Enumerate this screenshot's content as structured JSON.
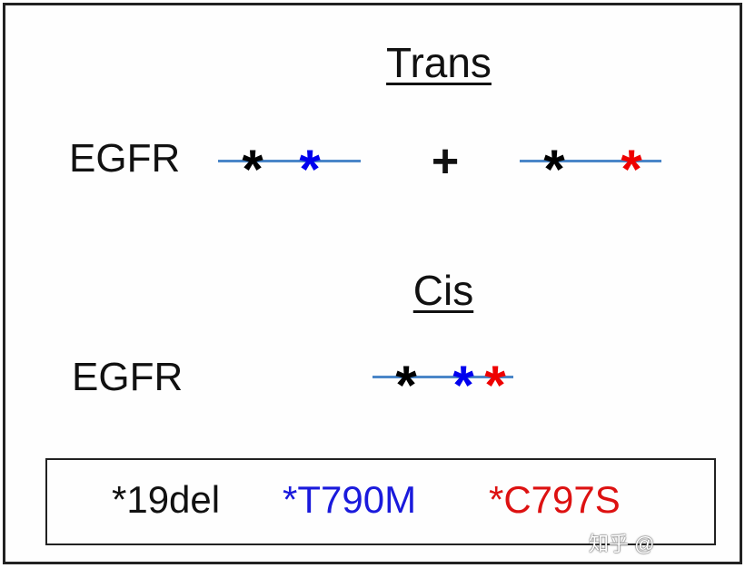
{
  "trans": {
    "title": "Trans",
    "gene_label": "EGFR",
    "plus": "+",
    "allele1": [
      {
        "mark": "*",
        "mutation": "19del",
        "color": "#000000"
      },
      {
        "mark": "*",
        "mutation": "T790M",
        "color": "#0000ee"
      }
    ],
    "allele2": [
      {
        "mark": "*",
        "mutation": "19del",
        "color": "#000000"
      },
      {
        "mark": "*",
        "mutation": "C797S",
        "color": "#ee0000"
      }
    ]
  },
  "cis": {
    "title": "Cis",
    "gene_label": "EGFR",
    "allele": [
      {
        "mark": "*",
        "mutation": "19del",
        "color": "#000000"
      },
      {
        "mark": "*",
        "mutation": "T790M",
        "color": "#0000ee"
      },
      {
        "mark": "*",
        "mutation": "C797S",
        "color": "#ee0000"
      }
    ]
  },
  "legend": {
    "items": [
      {
        "label": "*19del",
        "color": "#111111"
      },
      {
        "label": "*T790M",
        "color": "#1a1adc"
      },
      {
        "label": "*C797S",
        "color": "#dd1111"
      }
    ]
  },
  "line_color": "#4a86c8",
  "watermark": "知乎 @"
}
